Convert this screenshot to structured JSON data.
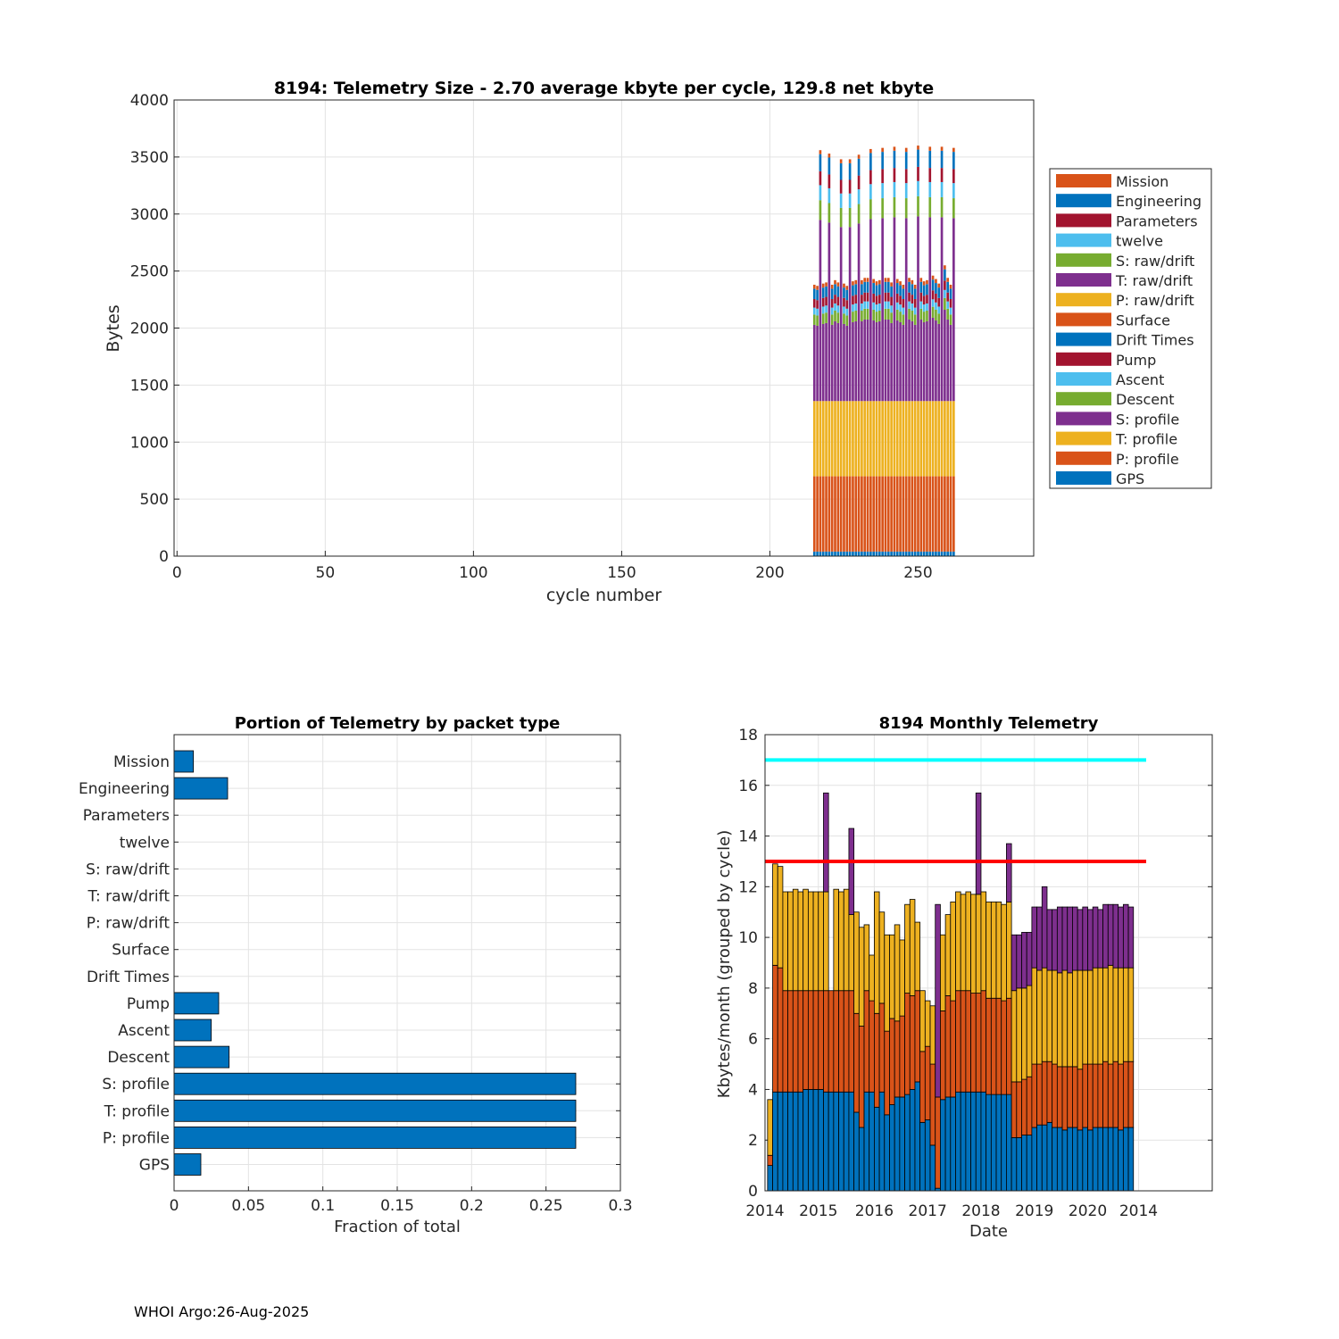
{
  "footer": "WHOI Argo:26-Aug-2025",
  "colors": {
    "blue": "#0072bd",
    "orange": "#d95319",
    "yellow": "#edb120",
    "purple": "#7e2f8e",
    "green": "#77ac30",
    "cyan": "#4dbeee",
    "maroon": "#a2142f",
    "line_cyan": "#00ffff",
    "line_red": "#ff0000"
  },
  "chart_data": [
    {
      "type": "stacked-bar",
      "title": "8194: Telemetry Size - 2.70 average kbyte per cycle,  129.8 net kbyte",
      "xlabel": "cycle number",
      "ylabel": "Bytes",
      "xlim": [
        -1,
        289
      ],
      "ylim": [
        0,
        4000
      ],
      "xticks": [
        0,
        50,
        100,
        150,
        200,
        250
      ],
      "yticks": [
        0,
        500,
        1000,
        1500,
        2000,
        2500,
        3000,
        3500,
        4000
      ],
      "grid": true,
      "legend_position": "right",
      "series": [
        {
          "name": "GPS",
          "color": "blue",
          "typical": 40
        },
        {
          "name": "P: profile",
          "color": "orange",
          "typical": 660
        },
        {
          "name": "T: profile",
          "color": "yellow",
          "typical": 660
        },
        {
          "name": "S: profile",
          "color": "purple",
          "typical": 660
        },
        {
          "name": "Descent",
          "color": "green",
          "typical": 90
        },
        {
          "name": "Ascent",
          "color": "cyan",
          "typical": 60
        },
        {
          "name": "Pump",
          "color": "maroon",
          "typical": 75
        },
        {
          "name": "Drift Times",
          "color": "blue",
          "typical": 0
        },
        {
          "name": "Surface",
          "color": "orange",
          "typical": 0
        },
        {
          "name": "P: raw/drift",
          "color": "yellow",
          "typical": 0
        },
        {
          "name": "T: raw/drift",
          "color": "purple",
          "typical": 0
        },
        {
          "name": "S: raw/drift",
          "color": "green",
          "typical": 0
        },
        {
          "name": "twelve",
          "color": "cyan",
          "typical": 0
        },
        {
          "name": "Parameters",
          "color": "maroon",
          "typical": 0
        },
        {
          "name": "Engineering",
          "color": "blue",
          "typical": 90
        },
        {
          "name": "Mission",
          "color": "orange",
          "typical": 35
        }
      ],
      "cycles": {
        "first": 215,
        "last": 262
      },
      "totals": [
        2380,
        2370,
        3560,
        2390,
        2400,
        3530,
        2380,
        2420,
        2400,
        3480,
        2390,
        2360,
        3480,
        2410,
        2420,
        3520,
        2420,
        2440,
        2440,
        3570,
        2430,
        2410,
        2420,
        3580,
        2440,
        2440,
        2400,
        3590,
        2430,
        2410,
        2380,
        3580,
        2440,
        2420,
        2380,
        3600,
        2440,
        2410,
        2420,
        3590,
        2460,
        2430,
        2390,
        3590,
        2550,
        2440,
        2380,
        3580
      ]
    },
    {
      "type": "barh",
      "title": "Portion of Telemetry by packet type",
      "xlabel": "Fraction of total",
      "xlim": [
        0,
        0.3
      ],
      "xticks": [
        "0",
        "0.05",
        "0.1",
        "0.15",
        "0.2",
        "0.25",
        "0.3"
      ],
      "categories": [
        "Mission",
        "Engineering",
        "Parameters",
        "twelve",
        "S: raw/drift",
        "T: raw/drift",
        "P: raw/drift",
        "Surface",
        "Drift Times",
        "Pump",
        "Ascent",
        "Descent",
        "S: profile",
        "T: profile",
        "P: profile",
        "GPS"
      ],
      "values": [
        0.013,
        0.036,
        0,
        0,
        0,
        0,
        0,
        0,
        0,
        0.03,
        0.025,
        0.037,
        0.27,
        0.27,
        0.27,
        0.018
      ],
      "color": "blue",
      "grid": true
    },
    {
      "type": "stacked-bar",
      "title": "8194 Monthly Telemetry",
      "xlabel": "Date",
      "ylabel": "Kbytes/month (grouped by cycle)",
      "ylim": [
        0,
        18
      ],
      "yticks": [
        0,
        2,
        4,
        6,
        8,
        10,
        12,
        14,
        16,
        18
      ],
      "xlim": [
        0,
        88
      ],
      "xtick_labels": [
        "2014",
        "2015",
        "2016",
        "2017",
        "2018",
        "2019",
        "2020",
        "2014"
      ],
      "grid": true,
      "reference_lines": [
        {
          "y": 17,
          "color": "line_cyan",
          "from": 0,
          "to": 75
        },
        {
          "y": 13,
          "color": "line_red",
          "from": 0,
          "to": 75
        }
      ],
      "series_names": [
        "blue",
        "orange",
        "yellow",
        "purple"
      ],
      "bars": [
        [
          1.0,
          0.4,
          2.2,
          0
        ],
        [
          3.9,
          5.0,
          4.0,
          0
        ],
        [
          3.9,
          4.9,
          4.0,
          0
        ],
        [
          3.9,
          4.0,
          3.9,
          0
        ],
        [
          3.9,
          4.0,
          3.9,
          0
        ],
        [
          3.9,
          4.0,
          4.0,
          0
        ],
        [
          3.9,
          4.0,
          3.9,
          0
        ],
        [
          4.0,
          3.9,
          4.0,
          0
        ],
        [
          4.0,
          3.9,
          3.9,
          0
        ],
        [
          4.0,
          3.9,
          3.9,
          0
        ],
        [
          4.0,
          3.9,
          3.9,
          0
        ],
        [
          3.9,
          4.0,
          3.9,
          3.9
        ],
        [
          3.9,
          4.0,
          0,
          0
        ],
        [
          3.9,
          4.0,
          4.0,
          0
        ],
        [
          3.9,
          4.0,
          3.9,
          0
        ],
        [
          3.9,
          4.0,
          4.0,
          0
        ],
        [
          3.9,
          4.0,
          3.0,
          3.4
        ],
        [
          3.1,
          3.9,
          4.0,
          0
        ],
        [
          2.5,
          4.0,
          3.9,
          0
        ],
        [
          3.9,
          4.0,
          2.6,
          0
        ],
        [
          3.9,
          3.6,
          1.8,
          0
        ],
        [
          3.3,
          3.7,
          4.8,
          0
        ],
        [
          3.9,
          3.5,
          3.6,
          0
        ],
        [
          3.0,
          3.3,
          3.8,
          0
        ],
        [
          3.4,
          3.4,
          3.3,
          0
        ],
        [
          3.7,
          3.0,
          3.8,
          0
        ],
        [
          3.7,
          3.2,
          3.0,
          0
        ],
        [
          3.8,
          4.0,
          3.5,
          0
        ],
        [
          4.0,
          3.7,
          3.8,
          0
        ],
        [
          4.3,
          3.6,
          2.7,
          0
        ],
        [
          2.7,
          2.8,
          2.4,
          0
        ],
        [
          2.8,
          2.9,
          1.8,
          0
        ],
        [
          1.8,
          3.2,
          2.3,
          0
        ],
        [
          0.1,
          3.6,
          0,
          7.6
        ],
        [
          3.6,
          3.5,
          3.0,
          0
        ],
        [
          3.7,
          4.0,
          3.2,
          0
        ],
        [
          3.7,
          3.8,
          3.9,
          0
        ],
        [
          3.9,
          4.0,
          3.9,
          0
        ],
        [
          3.9,
          4.0,
          3.8,
          0
        ],
        [
          3.9,
          4.0,
          3.9,
          0
        ],
        [
          3.9,
          3.9,
          3.9,
          0
        ],
        [
          3.9,
          3.9,
          3.9,
          4.0
        ],
        [
          3.9,
          4.0,
          3.9,
          0
        ],
        [
          3.8,
          3.8,
          3.8,
          0
        ],
        [
          3.8,
          3.8,
          3.8,
          0
        ],
        [
          3.8,
          3.8,
          3.8,
          0
        ],
        [
          3.8,
          3.7,
          3.8,
          0
        ],
        [
          3.8,
          3.8,
          3.8,
          2.3
        ],
        [
          2.1,
          2.2,
          3.6,
          2.2
        ],
        [
          2.1,
          2.2,
          3.7,
          2.1
        ],
        [
          2.2,
          2.2,
          3.6,
          2.2
        ],
        [
          2.2,
          2.3,
          3.6,
          2.1
        ],
        [
          2.5,
          2.5,
          3.8,
          2.4
        ],
        [
          2.6,
          2.4,
          3.7,
          2.5
        ],
        [
          2.6,
          2.5,
          3.7,
          3.2
        ],
        [
          2.7,
          2.4,
          3.6,
          2.4
        ],
        [
          2.5,
          2.5,
          3.7,
          2.4
        ],
        [
          2.5,
          2.4,
          3.7,
          2.6
        ],
        [
          2.4,
          2.5,
          3.8,
          2.5
        ],
        [
          2.5,
          2.4,
          3.7,
          2.6
        ],
        [
          2.5,
          2.4,
          3.8,
          2.5
        ],
        [
          2.4,
          2.4,
          3.9,
          2.4
        ],
        [
          2.5,
          2.5,
          3.7,
          2.5
        ],
        [
          2.4,
          2.6,
          3.7,
          2.4
        ],
        [
          2.5,
          2.5,
          3.8,
          2.4
        ],
        [
          2.5,
          2.5,
          3.8,
          2.3
        ],
        [
          2.5,
          2.6,
          3.7,
          2.5
        ],
        [
          2.5,
          2.5,
          3.9,
          2.4
        ],
        [
          2.5,
          2.6,
          3.7,
          2.5
        ],
        [
          2.4,
          2.6,
          3.8,
          2.4
        ],
        [
          2.5,
          2.6,
          3.7,
          2.5
        ],
        [
          2.5,
          2.6,
          3.7,
          2.4
        ]
      ]
    }
  ]
}
